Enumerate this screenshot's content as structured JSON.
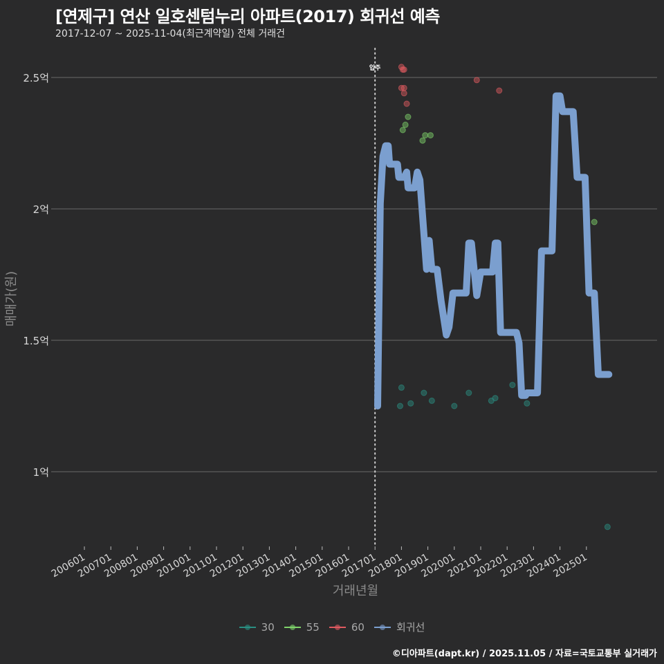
{
  "header": {
    "title": "[연제구] 연산 일호센텀누리 아파트(2017) 회귀선 예측",
    "subtitle": "2017-12-07 ~ 2025-11-04(최근계약일) 전체 거래건"
  },
  "footer": {
    "caption": "©디아파트(dapt.kr) / 2025.11.05 / 자료=국토교통부 실거래가"
  },
  "legend": {
    "items": [
      {
        "label": "30",
        "color": "#2a8f82"
      },
      {
        "label": "55",
        "color": "#7fd36a"
      },
      {
        "label": "60",
        "color": "#e05a60"
      },
      {
        "label": "회귀선",
        "color": "#7b9fcf"
      }
    ]
  },
  "annotation": {
    "label": "입주",
    "x": "201701"
  },
  "chart_data": {
    "type": "scatter+line",
    "title": "[연제구] 연산 일호센텀누리 아파트(2017) 회귀선 예측",
    "subtitle": "2017-12-07 ~ 2025-11-04(최근계약일) 전체 거래건",
    "xlabel": "거래년월",
    "ylabel": "매매가(원)",
    "x_ticks": [
      "200601",
      "200701",
      "200801",
      "200901",
      "201001",
      "201101",
      "201201",
      "201301",
      "201401",
      "201501",
      "201601",
      "201701",
      "201801",
      "201901",
      "202001",
      "202101",
      "202201",
      "202301",
      "202401",
      "202501"
    ],
    "y_ticks": [
      {
        "value": 1.0,
        "label": "1억"
      },
      {
        "value": 1.5,
        "label": "1.5억"
      },
      {
        "value": 2.0,
        "label": "2억"
      },
      {
        "value": 2.5,
        "label": "2.5억"
      }
    ],
    "ylim": [
      0.72,
      2.62
    ],
    "grid": "horizontal major lines",
    "legend_position": "bottom",
    "vline": {
      "x": 2017.0,
      "label": "입주",
      "style": "dotted"
    },
    "series": [
      {
        "name": "30",
        "type": "scatter",
        "color": "#2a8f82",
        "points": [
          [
            2017.95,
            1.25
          ],
          [
            2018.0,
            1.32
          ],
          [
            2018.35,
            1.26
          ],
          [
            2018.85,
            1.3
          ],
          [
            2019.15,
            1.27
          ],
          [
            2020.0,
            1.25
          ],
          [
            2020.55,
            1.3
          ],
          [
            2021.4,
            1.27
          ],
          [
            2021.55,
            1.28
          ],
          [
            2022.2,
            1.33
          ],
          [
            2022.75,
            1.26
          ],
          [
            2025.8,
            0.79
          ]
        ]
      },
      {
        "name": "55",
        "type": "scatter",
        "color": "#7fd36a",
        "points": [
          [
            2018.05,
            2.3
          ],
          [
            2018.15,
            2.32
          ],
          [
            2018.25,
            2.35
          ],
          [
            2018.8,
            2.26
          ],
          [
            2018.9,
            2.28
          ],
          [
            2019.1,
            2.28
          ],
          [
            2025.3,
            1.95
          ]
        ]
      },
      {
        "name": "60",
        "type": "scatter",
        "color": "#e05a60",
        "points": [
          [
            2018.0,
            2.54
          ],
          [
            2018.05,
            2.53
          ],
          [
            2018.1,
            2.53
          ],
          [
            2018.0,
            2.46
          ],
          [
            2018.1,
            2.46
          ],
          [
            2018.1,
            2.44
          ],
          [
            2018.2,
            2.4
          ],
          [
            2020.85,
            2.49
          ],
          [
            2021.7,
            2.45
          ]
        ]
      },
      {
        "name": "회귀선",
        "type": "line",
        "color": "#7b9fcf",
        "points": [
          [
            2017.1,
            1.25
          ],
          [
            2017.2,
            2.02
          ],
          [
            2017.3,
            2.2
          ],
          [
            2017.4,
            2.24
          ],
          [
            2017.5,
            2.24
          ],
          [
            2017.55,
            2.17
          ],
          [
            2017.85,
            2.17
          ],
          [
            2017.9,
            2.12
          ],
          [
            2018.1,
            2.12
          ],
          [
            2018.2,
            2.14
          ],
          [
            2018.25,
            2.08
          ],
          [
            2018.5,
            2.08
          ],
          [
            2018.6,
            2.14
          ],
          [
            2018.7,
            2.11
          ],
          [
            2018.95,
            1.77
          ],
          [
            2019.05,
            1.88
          ],
          [
            2019.15,
            1.77
          ],
          [
            2019.35,
            1.77
          ],
          [
            2019.5,
            1.65
          ],
          [
            2019.7,
            1.52
          ],
          [
            2019.8,
            1.55
          ],
          [
            2019.95,
            1.68
          ],
          [
            2020.45,
            1.68
          ],
          [
            2020.55,
            1.87
          ],
          [
            2020.65,
            1.87
          ],
          [
            2020.85,
            1.67
          ],
          [
            2021.0,
            1.76
          ],
          [
            2021.45,
            1.76
          ],
          [
            2021.55,
            1.87
          ],
          [
            2021.65,
            1.87
          ],
          [
            2021.75,
            1.53
          ],
          [
            2022.35,
            1.53
          ],
          [
            2022.45,
            1.49
          ],
          [
            2022.55,
            1.29
          ],
          [
            2022.7,
            1.29
          ],
          [
            2022.75,
            1.3
          ],
          [
            2023.15,
            1.3
          ],
          [
            2023.3,
            1.84
          ],
          [
            2023.7,
            1.84
          ],
          [
            2023.85,
            2.43
          ],
          [
            2024.0,
            2.43
          ],
          [
            2024.1,
            2.37
          ],
          [
            2024.5,
            2.37
          ],
          [
            2024.65,
            2.12
          ],
          [
            2024.95,
            2.12
          ],
          [
            2025.1,
            1.68
          ],
          [
            2025.3,
            1.68
          ],
          [
            2025.45,
            1.37
          ],
          [
            2025.85,
            1.37
          ]
        ]
      }
    ]
  }
}
